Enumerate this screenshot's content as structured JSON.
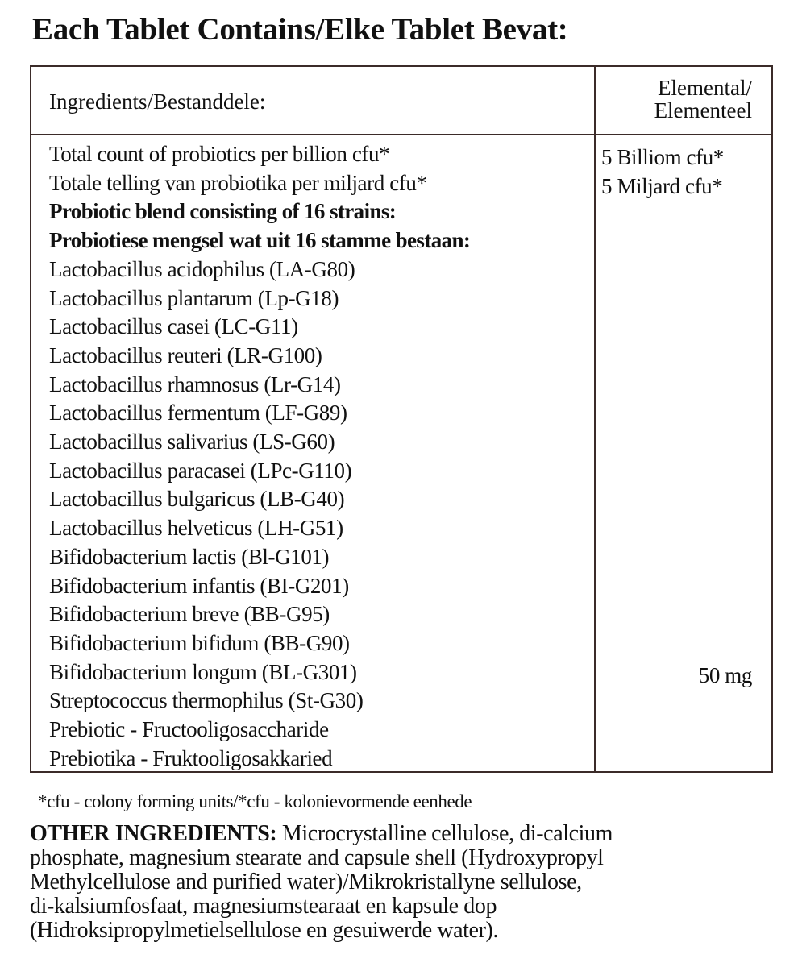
{
  "title": "Each Tablet Contains/Elke Tablet Bevat:",
  "table": {
    "header_ingredients": "Ingredients/Bestanddele:",
    "header_elemental": [
      "Elemental/",
      "Elementeel"
    ],
    "rows": [
      {
        "text": "Total count of probiotics per billion   cfu*",
        "bold": false
      },
      {
        "text": "Totale telling van probiotika per miljard cfu*",
        "bold": false
      },
      {
        "text": "Probiotic blend consisting of  16 strains:",
        "bold": true
      },
      {
        "text": "Probiotiese mengsel wat uit 16 stamme bestaan:",
        "bold": true
      },
      {
        "text": "Lactobacillus acidophilus (LA-G80)",
        "bold": false
      },
      {
        "text": "Lactobacillus plantarum (Lp-G18)",
        "bold": false
      },
      {
        "text": "Lactobacillus casei  (LC-G11)",
        "bold": false
      },
      {
        "text": "Lactobacillus reuteri (LR-G100)",
        "bold": false
      },
      {
        "text": "Lactobacillus rhamnosus (Lr-G14)",
        "bold": false
      },
      {
        "text": "Lactobacillus fermentum (LF-G89)",
        "bold": false
      },
      {
        "text": "Lactobacillus salivarius (LS-G60)",
        "bold": false
      },
      {
        "text": "Lactobacillus paracasei (LPc-G110)",
        "bold": false
      },
      {
        "text": "Lactobacillus bulgaricus (LB-G40)",
        "bold": false
      },
      {
        "text": "Lactobacillus helveticus (LH-G51)",
        "bold": false
      },
      {
        "text": "Bifidobacterium lactis (Bl-G101)",
        "bold": false
      },
      {
        "text": "Bifidobacterium infantis  (BI-G201)",
        "bold": false
      },
      {
        "text": "Bifidobacterium breve (BB-G95)",
        "bold": false
      },
      {
        "text": "Bifidobacterium bifidum (BB-G90)",
        "bold": false
      },
      {
        "text": "Bifidobacterium longum (BL-G301)",
        "bold": false
      },
      {
        "text": "Streptococcus thermophilus  (St-G30)",
        "bold": false
      },
      {
        "text": "Prebiotic - Fructooligosaccharide",
        "bold": false
      },
      {
        "text": "Prebiotika - Fruktooligosakkaried",
        "bold": false
      }
    ],
    "values": {
      "total_en": "5 Billiom cfu*",
      "total_af": "5 Miljard cfu*",
      "prebiotic": "50 mg"
    }
  },
  "footnote": "*cfu - colony forming units/*cfu - kolonievormende eenhede",
  "other_ingredients": {
    "label": "OTHER INGREDIENTS:",
    "lines": [
      " Microcrystalline  cellulose, di-calcium",
      "phosphate, magnesium stearate and capsule shell (Hydroxypropyl",
      "Methylcellulose and purified water)/Mikrokristallyne sellulose,",
      "di-kalsiumfosfaat, magnesiumstearaat en kapsule dop",
      "(Hidroksipropylmetielsellulose en gesuiwerde water)."
    ]
  }
}
